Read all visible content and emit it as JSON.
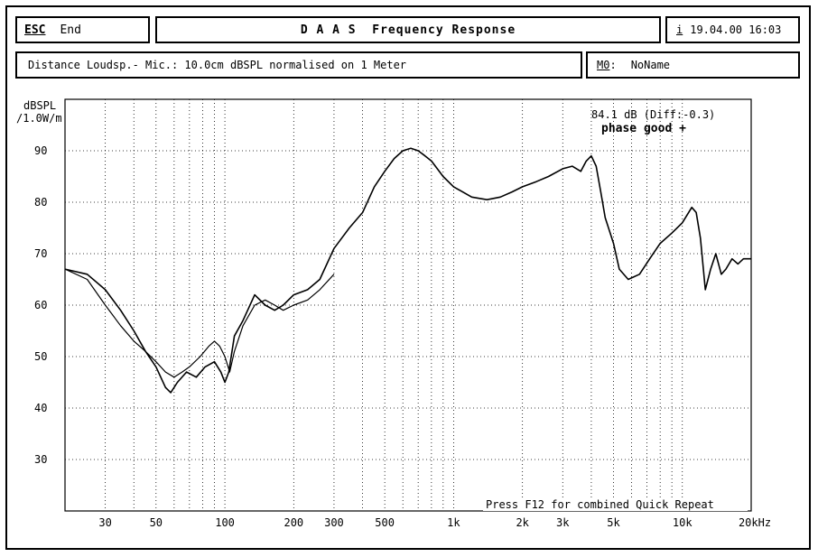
{
  "header": {
    "esc_key": "ESC",
    "end_label": "End",
    "title": "D A A S  Frequency Response",
    "info_key": "i",
    "datetime": "19.04.00 16:03"
  },
  "subheader": {
    "description": "Distance Loudsp.- Mic.: 10.0cm dBSPL normalised on 1 Meter",
    "memory_key": "M0",
    "memory_sep": ":",
    "memory_name": "NoName"
  },
  "annotations": {
    "level_readout": "84.1 dB (Diff:-0.3)",
    "phase_status": "phase good +",
    "footer_hint": "Press F12 for combined Quick Repeat"
  },
  "colors": {
    "trace": "#000000",
    "grid": "#000000",
    "background": "#ffffff"
  },
  "chart_data": {
    "type": "line",
    "title": "D A A S  Frequency Response",
    "ylabel_line1": "dBSPL",
    "ylabel_line2": "/1.0W/m",
    "xlabel": "",
    "x_scale": "log",
    "xlim": [
      20,
      20000
    ],
    "ylim": [
      20,
      100
    ],
    "grid": true,
    "x_ticks": [
      {
        "v": 30,
        "label": "30"
      },
      {
        "v": 50,
        "label": "50"
      },
      {
        "v": 100,
        "label": "100"
      },
      {
        "v": 200,
        "label": "200"
      },
      {
        "v": 300,
        "label": "300"
      },
      {
        "v": 500,
        "label": "500"
      },
      {
        "v": 1000,
        "label": "1k"
      },
      {
        "v": 2000,
        "label": "2k"
      },
      {
        "v": 3000,
        "label": "3k"
      },
      {
        "v": 5000,
        "label": "5k"
      },
      {
        "v": 10000,
        "label": "10k"
      },
      {
        "v": 20000,
        "label": "20kHz"
      }
    ],
    "y_ticks": [
      30,
      40,
      50,
      60,
      70,
      80,
      90
    ],
    "series": [
      {
        "x": [
          20,
          25,
          30,
          35,
          40,
          45,
          50,
          55,
          58,
          62,
          68,
          75,
          82,
          90,
          96,
          100,
          104,
          110,
          120,
          135,
          150,
          165,
          180,
          200,
          230,
          260,
          300,
          350,
          400,
          450,
          500,
          550,
          600,
          650,
          700,
          750,
          800,
          900,
          1000,
          1200,
          1400,
          1600,
          1800,
          2000,
          2300,
          2600,
          3000,
          3300,
          3600,
          3800,
          4000,
          4200,
          4400,
          4600,
          5000,
          5300,
          5800,
          6500,
          7200,
          8000,
          9000,
          10000,
          11000,
          11500,
          12000,
          12600,
          13300,
          14000,
          14800,
          15500,
          16500,
          17500,
          18500,
          20000
        ],
        "y": [
          67,
          66,
          63,
          59,
          55,
          51,
          48,
          44,
          43,
          45,
          47,
          46,
          48,
          49,
          47,
          45,
          47,
          54,
          57,
          62,
          60,
          59,
          60,
          62,
          63,
          65,
          71,
          75,
          78,
          83,
          86,
          88.5,
          90,
          90.5,
          90,
          89,
          88,
          85,
          83,
          81,
          80.5,
          81,
          82,
          83,
          84,
          85,
          86.5,
          87,
          86,
          88,
          89,
          87,
          82,
          77,
          72,
          67,
          65,
          66,
          69,
          72,
          74,
          76,
          79,
          78,
          73,
          63,
          67,
          70,
          66,
          67,
          69,
          68,
          69,
          69
        ]
      },
      {
        "x": [
          20,
          25,
          30,
          35,
          40,
          45,
          50,
          55,
          60,
          65,
          70,
          78,
          85,
          90,
          95,
          100,
          105,
          110,
          120,
          135,
          150,
          165,
          180,
          200,
          230,
          260,
          300
        ],
        "y": [
          67,
          65,
          60,
          56,
          53,
          51,
          49,
          47,
          46,
          47,
          48,
          50,
          52,
          53,
          52,
          50,
          47,
          51,
          56,
          60,
          61,
          60,
          59,
          60,
          61,
          63,
          66
        ]
      }
    ]
  }
}
